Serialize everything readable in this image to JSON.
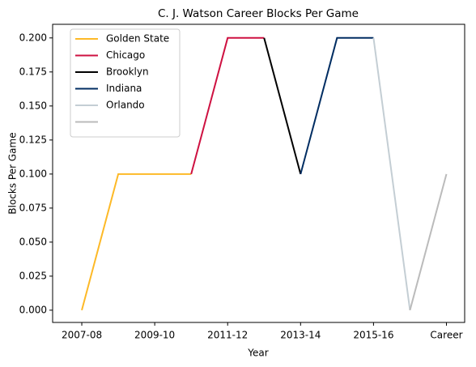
{
  "chart_data": {
    "type": "line",
    "title": "C. J. Watson Career Blocks Per Game",
    "x_label": "Year",
    "y_label": "Blocks Per Game",
    "categories": [
      "2007-08",
      null,
      "2009-10",
      null,
      "2011-12",
      null,
      "2013-14",
      null,
      "2015-16",
      null,
      "Career"
    ],
    "series": [
      {
        "name": "Golden State",
        "color": "#fdb927",
        "values": [
          0,
          0.1,
          0.1,
          0.1,
          null,
          null,
          null,
          null,
          null,
          null,
          null
        ]
      },
      {
        "name": "Chicago",
        "color": "#ce1141",
        "values": [
          null,
          null,
          null,
          0.1,
          0.2,
          0.2,
          null,
          null,
          null,
          null,
          null
        ]
      },
      {
        "name": "Brooklyn",
        "color": "#000000",
        "values": [
          null,
          null,
          null,
          null,
          null,
          0.2,
          0.1,
          null,
          null,
          null,
          null
        ]
      },
      {
        "name": "Indiana",
        "color": "#002d62",
        "values": [
          null,
          null,
          null,
          null,
          null,
          null,
          0.1,
          0.2,
          0.2,
          null,
          null
        ]
      },
      {
        "name": "Orlando",
        "color": "#c4ced4",
        "values": [
          null,
          null,
          null,
          null,
          null,
          null,
          null,
          null,
          0.2,
          0,
          null
        ]
      },
      {
        "color": "#bbbbbb",
        "values": [
          null,
          null,
          null,
          null,
          null,
          null,
          null,
          null,
          null,
          0,
          0.1
        ]
      }
    ],
    "ylim": [
      -0.009,
      0.21
    ],
    "yticks": [
      {
        "value": 0,
        "label": "0.000"
      },
      {
        "value": 0.025,
        "label": "0.025"
      },
      {
        "value": 0.05,
        "label": "0.050"
      },
      {
        "value": 0.075,
        "label": "0.075"
      },
      {
        "value": 0.1,
        "label": "0.100"
      },
      {
        "value": 0.125,
        "label": "0.125"
      },
      {
        "value": 0.15,
        "label": "0.150"
      },
      {
        "value": 0.175,
        "label": "0.175"
      },
      {
        "value": 0.2,
        "label": "0.200"
      }
    ],
    "legend": "upper left",
    "grid": false
  }
}
